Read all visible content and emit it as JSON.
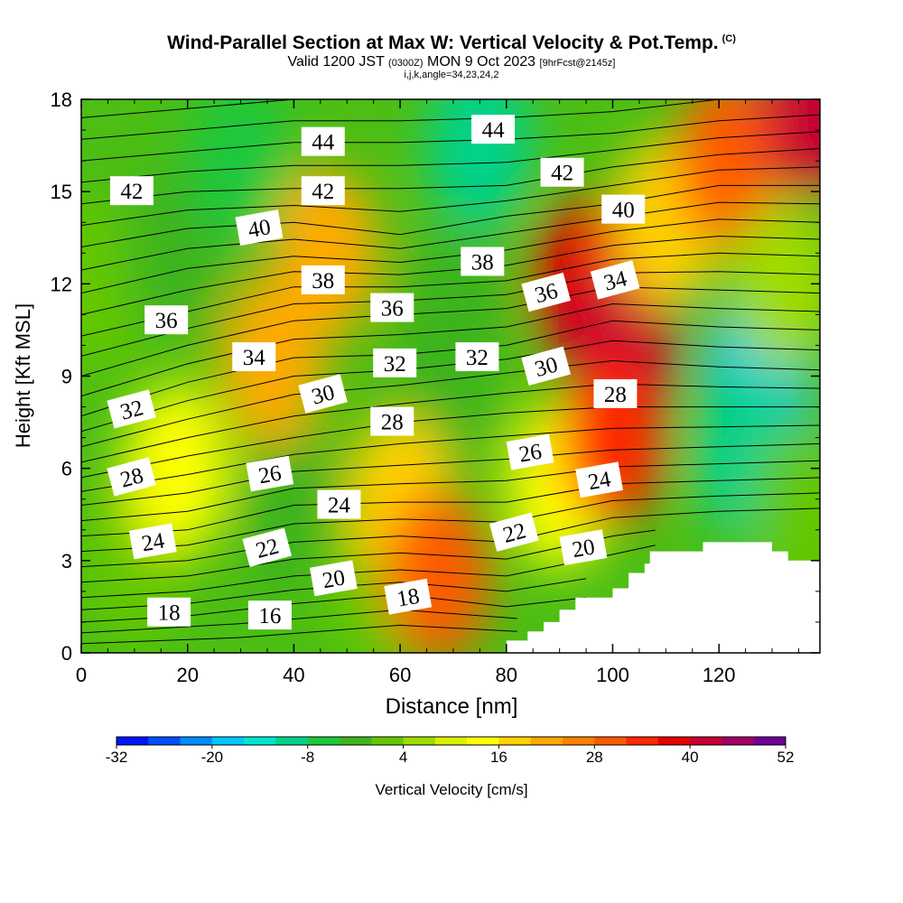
{
  "title": {
    "main": "Wind-Parallel Section at Max W: Vertical Velocity & Pot.Temp.",
    "main_tag": "(C)",
    "valid_prefix": "Valid 1200 JST",
    "valid_utc": "(0300Z)",
    "valid_date": "MON 9 Oct 2023",
    "valid_fcst": "[9hrFcst@2145z]",
    "indices": "i,j,k,angle=34,23,24,2"
  },
  "chart_data": {
    "type": "heatmap",
    "xlabel": "Distance [nm]",
    "ylabel": "Height [Kft MSL]",
    "xlim": [
      0,
      139
    ],
    "ylim": [
      0,
      18
    ],
    "x_ticks": [
      0,
      20,
      40,
      60,
      80,
      100,
      120
    ],
    "y_ticks": [
      0,
      3,
      6,
      9,
      12,
      15,
      18
    ],
    "colorbar": {
      "label": "Vertical Velocity [cm/s]",
      "tick_labels": [
        "-32",
        "-20",
        "-8",
        "4",
        "16",
        "28",
        "40",
        "52"
      ],
      "tick_values": [
        -32,
        -20,
        -8,
        4,
        16,
        28,
        40,
        52
      ],
      "levels": [
        -32,
        -28,
        -24,
        -20,
        -16,
        -12,
        -8,
        -4,
        0,
        4,
        8,
        12,
        16,
        20,
        24,
        28,
        32,
        36,
        40,
        44,
        48,
        52
      ],
      "colors": [
        "#0014ff",
        "#0050ff",
        "#008cff",
        "#00c8ff",
        "#00e6d2",
        "#00d28c",
        "#1ec83c",
        "#3cb41e",
        "#64c800",
        "#a0dc00",
        "#dcf000",
        "#ffff00",
        "#ffd200",
        "#ffaa00",
        "#ff8200",
        "#ff5a00",
        "#ff2800",
        "#e60000",
        "#c80032",
        "#a00064",
        "#6e0096"
      ]
    },
    "velocity_blobs": [
      {
        "x": 2,
        "y": 12,
        "value": 0
      },
      {
        "x": 18,
        "y": 13,
        "value": -4
      },
      {
        "x": 30,
        "y": 16,
        "value": -8
      },
      {
        "x": 75,
        "y": 16.5,
        "value": -12
      },
      {
        "x": 70,
        "y": 11,
        "value": -4
      },
      {
        "x": 68,
        "y": 8.5,
        "value": -2
      },
      {
        "x": 40,
        "y": 4.5,
        "value": -2
      },
      {
        "x": 55,
        "y": 2.5,
        "value": 0
      },
      {
        "x": 10,
        "y": 3,
        "value": 2
      },
      {
        "x": 46,
        "y": 13,
        "value": 22
      },
      {
        "x": 36,
        "y": 9.5,
        "value": 20
      },
      {
        "x": 18,
        "y": 6,
        "value": 12
      },
      {
        "x": 60,
        "y": 5,
        "value": 16
      },
      {
        "x": 67,
        "y": 2.5,
        "value": 28
      },
      {
        "x": 90,
        "y": 5.5,
        "value": 14
      },
      {
        "x": 95,
        "y": 12,
        "value": 38
      },
      {
        "x": 102,
        "y": 10,
        "value": 40
      },
      {
        "x": 100,
        "y": 7,
        "value": 32
      },
      {
        "x": 110,
        "y": 14,
        "value": 16
      },
      {
        "x": 122,
        "y": 16,
        "value": 30
      },
      {
        "x": 138,
        "y": 17.5,
        "value": 40
      },
      {
        "x": 127,
        "y": 8.8,
        "value": -20
      },
      {
        "x": 125,
        "y": 6.5,
        "value": -12
      },
      {
        "x": 132,
        "y": 12,
        "value": 6
      },
      {
        "x": 136,
        "y": 4.5,
        "value": 0
      }
    ],
    "theta_contours": [
      {
        "label": "16",
        "levels": [
          16
        ],
        "points": [
          [
            0,
            0.3
          ],
          [
            30,
            0.5
          ],
          [
            60,
            0.9
          ],
          [
            82,
            0.7
          ]
        ]
      },
      {
        "label": "18",
        "points": [
          [
            0,
            1.0
          ],
          [
            20,
            1.2
          ],
          [
            40,
            1.6
          ],
          [
            60,
            1.9
          ],
          [
            80,
            1.5
          ],
          [
            95,
            1.8
          ]
        ]
      },
      {
        "label": "20",
        "points": [
          [
            0,
            1.8
          ],
          [
            20,
            2.0
          ],
          [
            40,
            2.5
          ],
          [
            60,
            2.7
          ],
          [
            80,
            2.5
          ],
          [
            100,
            3.2
          ],
          [
            108,
            3.5
          ]
        ]
      },
      {
        "label": "22",
        "points": [
          [
            0,
            2.8
          ],
          [
            20,
            3.0
          ],
          [
            40,
            3.6
          ],
          [
            60,
            3.8
          ],
          [
            80,
            3.6
          ],
          [
            100,
            4.4
          ],
          [
            120,
            4.6
          ],
          [
            139,
            4.7
          ]
        ]
      },
      {
        "label": "24",
        "points": [
          [
            0,
            3.8
          ],
          [
            20,
            4.0
          ],
          [
            40,
            4.8
          ],
          [
            60,
            4.9
          ],
          [
            80,
            4.9
          ],
          [
            100,
            5.5
          ],
          [
            120,
            5.6
          ],
          [
            139,
            5.7
          ]
        ]
      },
      {
        "label": "26",
        "points": [
          [
            0,
            4.8
          ],
          [
            20,
            5.2
          ],
          [
            40,
            5.9
          ],
          [
            60,
            6.1
          ],
          [
            80,
            6.3
          ],
          [
            100,
            6.6
          ],
          [
            120,
            6.7
          ],
          [
            139,
            6.8
          ]
        ]
      },
      {
        "label": "28",
        "points": [
          [
            0,
            5.7
          ],
          [
            20,
            6.4
          ],
          [
            40,
            7.0
          ],
          [
            60,
            7.5
          ],
          [
            80,
            7.8
          ],
          [
            100,
            8.0
          ],
          [
            120,
            8.0
          ],
          [
            139,
            8.0
          ]
        ]
      },
      {
        "label": "30",
        "points": [
          [
            0,
            6.7
          ],
          [
            20,
            7.6
          ],
          [
            40,
            8.4
          ],
          [
            60,
            8.7
          ],
          [
            80,
            9.1
          ],
          [
            100,
            9.5
          ],
          [
            120,
            9.3
          ],
          [
            139,
            9.2
          ]
        ]
      },
      {
        "label": "32",
        "points": [
          [
            0,
            7.7
          ],
          [
            20,
            8.8
          ],
          [
            40,
            9.6
          ],
          [
            60,
            9.7
          ],
          [
            80,
            10.0
          ],
          [
            100,
            10.8
          ],
          [
            120,
            10.6
          ],
          [
            139,
            10.5
          ]
        ]
      },
      {
        "label": "34",
        "points": [
          [
            0,
            9.0
          ],
          [
            20,
            10.0
          ],
          [
            40,
            10.8
          ],
          [
            60,
            11.0
          ],
          [
            80,
            11.2
          ],
          [
            100,
            11.9
          ],
          [
            120,
            11.8
          ],
          [
            139,
            11.7
          ]
        ]
      },
      {
        "label": "36",
        "points": [
          [
            0,
            10.3
          ],
          [
            20,
            11.1
          ],
          [
            40,
            11.9
          ],
          [
            60,
            11.9
          ],
          [
            80,
            12.1
          ],
          [
            100,
            12.8
          ],
          [
            120,
            13.0
          ],
          [
            139,
            12.9
          ]
        ]
      },
      {
        "label": "38",
        "points": [
          [
            0,
            11.7
          ],
          [
            20,
            12.5
          ],
          [
            40,
            12.9
          ],
          [
            60,
            12.7
          ],
          [
            80,
            13.1
          ],
          [
            100,
            13.7
          ],
          [
            120,
            14.1
          ],
          [
            139,
            14.0
          ]
        ]
      },
      {
        "label": "40",
        "points": [
          [
            0,
            13.2
          ],
          [
            20,
            13.8
          ],
          [
            40,
            14.0
          ],
          [
            60,
            13.6
          ],
          [
            80,
            14.2
          ],
          [
            100,
            14.6
          ],
          [
            120,
            15.2
          ],
          [
            139,
            15.2
          ]
        ]
      },
      {
        "label": "42",
        "points": [
          [
            0,
            14.6
          ],
          [
            20,
            15.0
          ],
          [
            40,
            15.1
          ],
          [
            60,
            15.1
          ],
          [
            80,
            15.2
          ],
          [
            100,
            15.8
          ],
          [
            120,
            16.2
          ],
          [
            139,
            16.4
          ]
        ]
      },
      {
        "label": "44",
        "points": [
          [
            0,
            16.0
          ],
          [
            20,
            16.3
          ],
          [
            40,
            16.6
          ],
          [
            60,
            16.6
          ],
          [
            80,
            16.7
          ],
          [
            100,
            16.9
          ],
          [
            120,
            17.3
          ],
          [
            139,
            17.5
          ]
        ]
      }
    ],
    "contour_labels": [
      {
        "text": "42",
        "x": 9.5,
        "y": 15.0,
        "angle": 0
      },
      {
        "text": "44",
        "x": 45.5,
        "y": 16.6,
        "angle": 0
      },
      {
        "text": "44",
        "x": 77.5,
        "y": 17.0,
        "angle": 0
      },
      {
        "text": "42",
        "x": 45.5,
        "y": 15.0,
        "angle": 0
      },
      {
        "text": "42",
        "x": 90.5,
        "y": 15.6,
        "angle": 0
      },
      {
        "text": "40",
        "x": 33.5,
        "y": 13.8,
        "angle": -10
      },
      {
        "text": "40",
        "x": 102,
        "y": 14.4,
        "angle": 0
      },
      {
        "text": "38",
        "x": 45.5,
        "y": 12.1,
        "angle": 0
      },
      {
        "text": "38",
        "x": 75.5,
        "y": 12.7,
        "angle": 0
      },
      {
        "text": "36",
        "x": 16,
        "y": 10.8,
        "angle": 0
      },
      {
        "text": "36",
        "x": 58.5,
        "y": 11.2,
        "angle": 0
      },
      {
        "text": "36",
        "x": 87.5,
        "y": 11.7,
        "angle": -15
      },
      {
        "text": "34",
        "x": 100.5,
        "y": 12.1,
        "angle": -15
      },
      {
        "text": "34",
        "x": 32.5,
        "y": 9.6,
        "angle": 0
      },
      {
        "text": "32",
        "x": 59,
        "y": 9.4,
        "angle": 0
      },
      {
        "text": "32",
        "x": 74.5,
        "y": 9.6,
        "angle": 0
      },
      {
        "text": "32",
        "x": 9.5,
        "y": 7.9,
        "angle": -15
      },
      {
        "text": "30",
        "x": 45.5,
        "y": 8.4,
        "angle": -15
      },
      {
        "text": "30",
        "x": 87.5,
        "y": 9.3,
        "angle": -15
      },
      {
        "text": "28",
        "x": 58.5,
        "y": 7.5,
        "angle": 0
      },
      {
        "text": "28",
        "x": 100.5,
        "y": 8.4,
        "angle": 0
      },
      {
        "text": "28",
        "x": 9.5,
        "y": 5.7,
        "angle": -15
      },
      {
        "text": "26",
        "x": 35.5,
        "y": 5.8,
        "angle": -10
      },
      {
        "text": "26",
        "x": 84.5,
        "y": 6.5,
        "angle": -10
      },
      {
        "text": "24",
        "x": 97.5,
        "y": 5.6,
        "angle": -10
      },
      {
        "text": "24",
        "x": 48.5,
        "y": 4.8,
        "angle": 0
      },
      {
        "text": "24",
        "x": 13.5,
        "y": 3.6,
        "angle": -10
      },
      {
        "text": "22",
        "x": 35,
        "y": 3.4,
        "angle": -15
      },
      {
        "text": "22",
        "x": 81.5,
        "y": 3.9,
        "angle": -15
      },
      {
        "text": "20",
        "x": 47.5,
        "y": 2.4,
        "angle": -10
      },
      {
        "text": "20",
        "x": 94.5,
        "y": 3.4,
        "angle": -10
      },
      {
        "text": "18",
        "x": 61.5,
        "y": 1.8,
        "angle": -10
      },
      {
        "text": "18",
        "x": 16.5,
        "y": 1.3,
        "angle": 0
      },
      {
        "text": "16",
        "x": 35.5,
        "y": 1.2,
        "angle": 0
      }
    ],
    "terrain": [
      [
        80,
        0
      ],
      [
        80,
        0.4
      ],
      [
        84,
        0.4
      ],
      [
        84,
        0.7
      ],
      [
        87,
        0.7
      ],
      [
        87,
        1.0
      ],
      [
        90,
        1.0
      ],
      [
        90,
        1.4
      ],
      [
        93,
        1.4
      ],
      [
        93,
        1.8
      ],
      [
        100,
        1.8
      ],
      [
        100,
        2.1
      ],
      [
        103,
        2.1
      ],
      [
        103,
        2.6
      ],
      [
        106,
        2.6
      ],
      [
        106,
        2.9
      ],
      [
        107,
        2.9
      ],
      [
        107,
        3.3
      ],
      [
        117,
        3.3
      ],
      [
        117,
        3.6
      ],
      [
        130,
        3.6
      ],
      [
        130,
        3.3
      ],
      [
        133,
        3.3
      ],
      [
        133,
        3.0
      ],
      [
        139,
        3.0
      ],
      [
        139,
        0
      ]
    ]
  }
}
